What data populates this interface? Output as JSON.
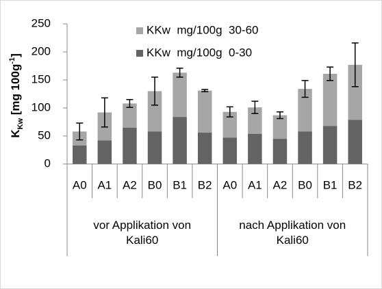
{
  "chart_data": {
    "type": "stacked_bar",
    "ylabel": [
      "K",
      "Kw",
      " [mg 100g",
      "-1",
      "]"
    ],
    "groups": [
      {
        "name": "vor Applikation von Kali60",
        "categories": [
          "A0",
          "A1",
          "A2",
          "B0",
          "B1",
          "B2"
        ]
      },
      {
        "name": "nach Applikation von Kali60",
        "categories": [
          "A0",
          "A1",
          "A2",
          "B0",
          "B1",
          "B2"
        ]
      }
    ],
    "series": [
      {
        "name": "KKw  mg/100g  0-30",
        "color": "#636363",
        "values": [
          33,
          42,
          65,
          58,
          84,
          56,
          47,
          54,
          45,
          58,
          68,
          79
        ]
      },
      {
        "name": "KKw  mg/100g  30-60",
        "color": "#a6a6a6",
        "values": [
          25,
          50,
          43,
          72,
          79,
          75,
          46,
          47,
          42,
          76,
          93,
          98
        ],
        "errors": [
          15,
          26,
          7,
          25,
          8,
          2,
          9,
          11,
          6,
          15,
          12,
          39
        ]
      }
    ],
    "ylim": [
      0,
      250
    ],
    "yticks": [
      0,
      50,
      100,
      150,
      200,
      250
    ],
    "grid": false,
    "legend": "top"
  }
}
